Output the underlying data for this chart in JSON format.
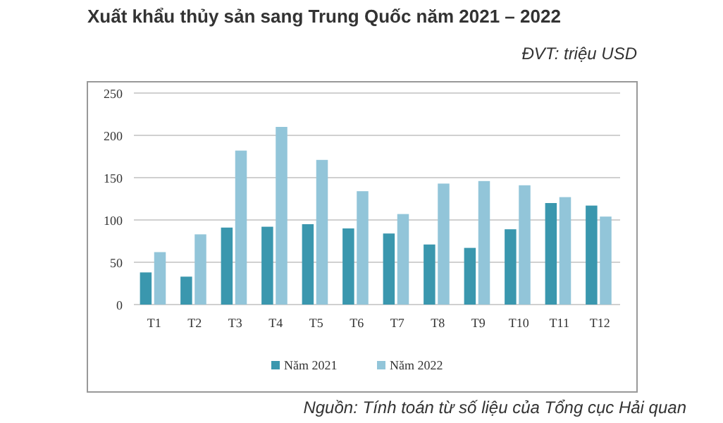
{
  "chart_data": {
    "type": "bar",
    "title": "Xuất khẩu thủy sản sang Trung Quốc năm 2021 – 2022",
    "subtitle": "ĐVT: triệu USD",
    "annotations": [
      "Nguồn: Tính toán từ số liệu của Tổng cục Hải quan"
    ],
    "categories": [
      "T1",
      "T2",
      "T3",
      "T4",
      "T5",
      "T6",
      "T7",
      "T8",
      "T9",
      "T10",
      "T11",
      "T12"
    ],
    "series": [
      {
        "name": "Năm 2021",
        "color": "#3a97ae",
        "values": [
          38,
          33,
          91,
          92,
          95,
          90,
          84,
          71,
          67,
          89,
          120,
          117
        ]
      },
      {
        "name": "Năm 2022",
        "color": "#92c5d9",
        "values": [
          62,
          83,
          182,
          210,
          171,
          134,
          107,
          143,
          146,
          141,
          127,
          104
        ]
      }
    ],
    "ylim": [
      0,
      250
    ],
    "yticks": [
      0,
      50,
      100,
      150,
      200,
      250
    ],
    "grid": "y",
    "legend": "bottom"
  }
}
